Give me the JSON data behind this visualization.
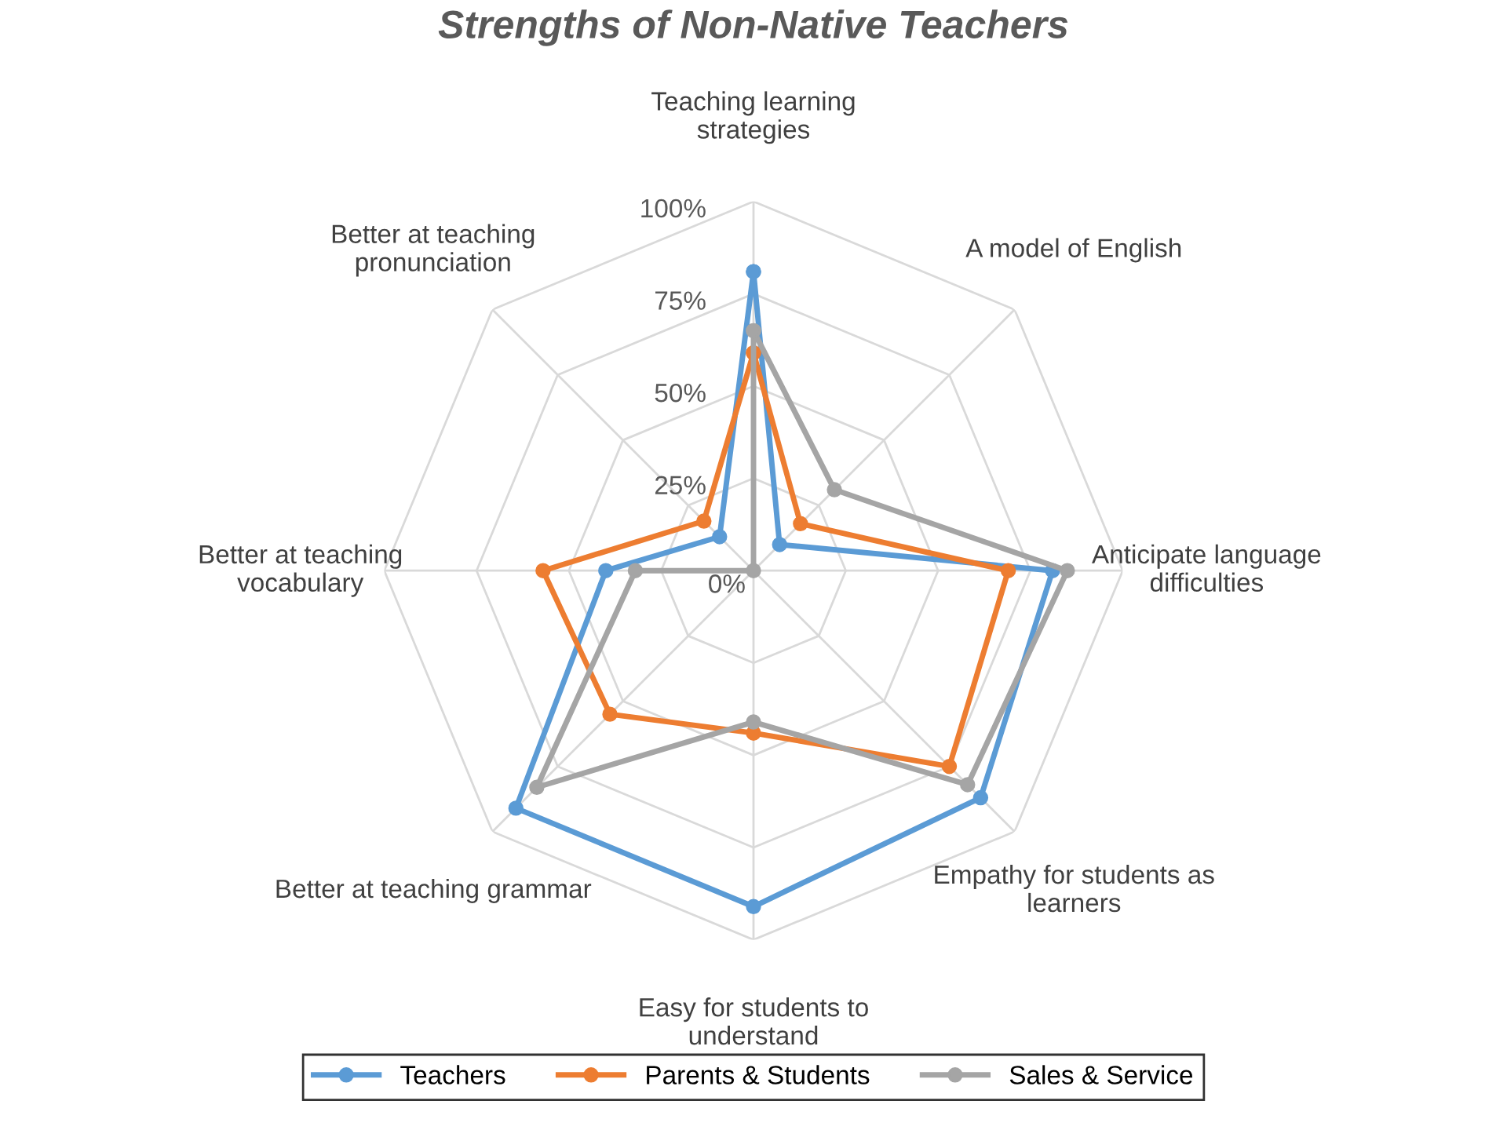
{
  "chart_data": {
    "type": "radar",
    "title": "Strengths of Non-Native Teachers",
    "categories": [
      "Teaching learning\nstrategies",
      "A model of English",
      "Anticipate language\ndifficulties",
      "Empathy for students as\nlearners",
      "Easy for students to\nunderstand",
      "Better at teaching grammar",
      "Better at teaching\nvocabulary",
      "Better at teaching\npronunciation"
    ],
    "series": [
      {
        "name": "Teachers",
        "color": "#5b9bd5",
        "values": [
          81,
          10,
          81,
          87,
          91,
          91,
          40,
          13
        ]
      },
      {
        "name": "Parents & Students",
        "color": "#ed7d31",
        "values": [
          59,
          18,
          69,
          75,
          44,
          55,
          57,
          19
        ]
      },
      {
        "name": "Sales & Service",
        "color": "#a5a5a5",
        "values": [
          65,
          31,
          85,
          82,
          41,
          83,
          32,
          0
        ]
      }
    ],
    "ylim": [
      0,
      100
    ],
    "yticks": [
      {
        "value": 0,
        "label": "0%"
      },
      {
        "value": 25,
        "label": "25%"
      },
      {
        "value": 50,
        "label": "50%"
      },
      {
        "value": 75,
        "label": "75%"
      },
      {
        "value": 100,
        "label": "100%"
      }
    ],
    "grid": true,
    "legend": "bottom",
    "marker": "circle",
    "line_style": "solid"
  }
}
